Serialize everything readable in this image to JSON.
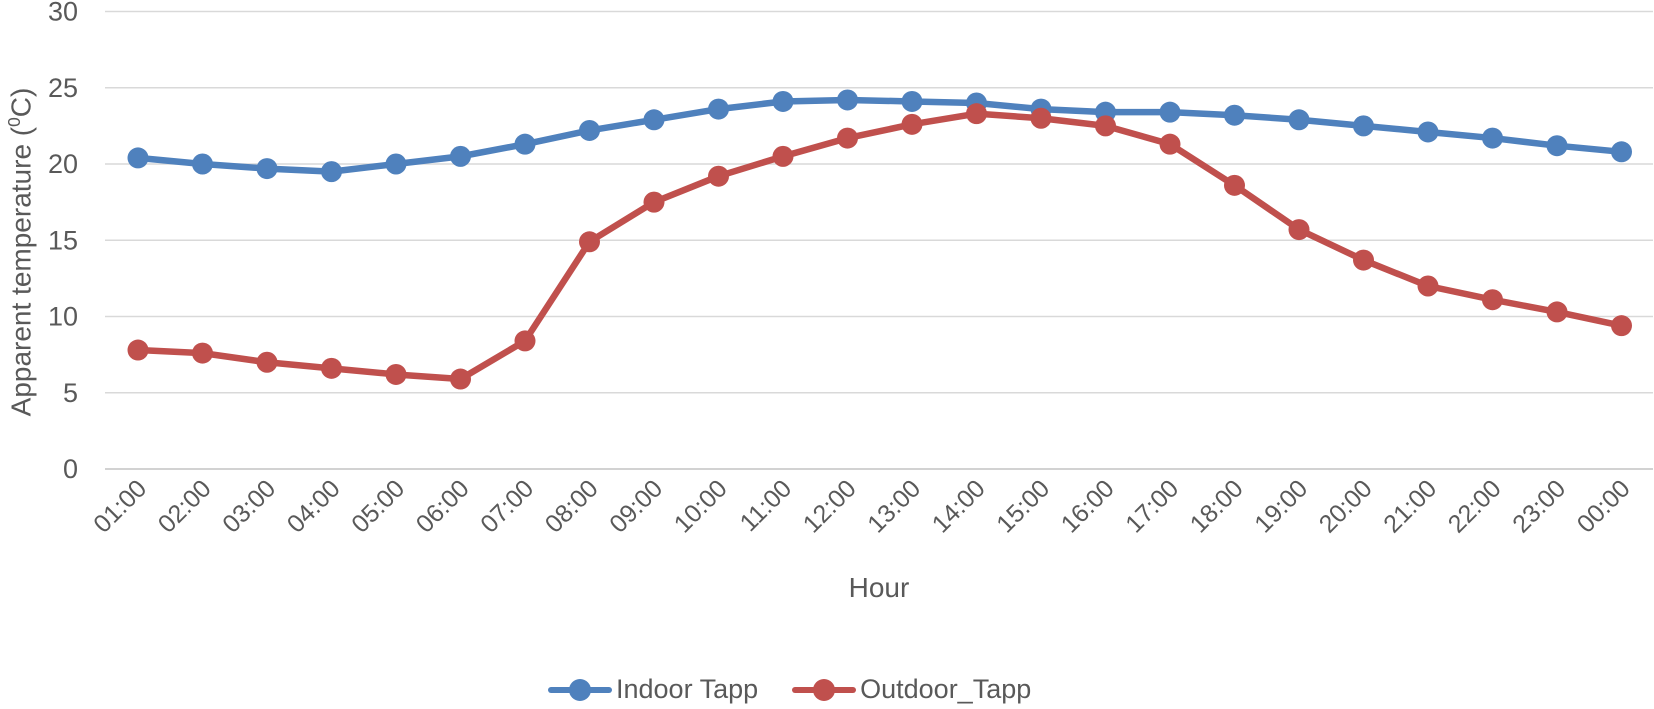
{
  "chart_data": {
    "type": "line",
    "title": "",
    "xlabel": "Hour",
    "ylabel": "Apparent temperature (⁰C)",
    "ylabel_parts": {
      "prefix": "Apparent temperature (",
      "superscript": "0",
      "suffix": "C)"
    },
    "ylim": [
      0,
      30
    ],
    "yticks": [
      0,
      5,
      10,
      15,
      20,
      25,
      30
    ],
    "grid": true,
    "legend_position": "bottom",
    "marker": "circle",
    "categories": [
      "01:00",
      "02:00",
      "03:00",
      "04:00",
      "05:00",
      "06:00",
      "07:00",
      "08:00",
      "09:00",
      "10:00",
      "11:00",
      "12:00",
      "13:00",
      "14:00",
      "15:00",
      "16:00",
      "17:00",
      "18:00",
      "19:00",
      "20:00",
      "21:00",
      "22:00",
      "23:00",
      "00:00"
    ],
    "series": [
      {
        "name": "Indoor Tapp",
        "color": "#4f81bd",
        "values": [
          20.4,
          20.0,
          19.7,
          19.5,
          20.0,
          20.5,
          21.3,
          22.2,
          22.9,
          23.6,
          24.1,
          24.2,
          24.1,
          24.0,
          23.6,
          23.4,
          23.4,
          23.2,
          22.9,
          22.5,
          22.1,
          21.7,
          21.2,
          20.8
        ]
      },
      {
        "name": "Outdoor_Tapp",
        "color": "#c0504d",
        "values": [
          7.8,
          7.6,
          7.0,
          6.6,
          6.2,
          5.9,
          8.4,
          14.9,
          17.5,
          19.2,
          20.5,
          21.7,
          22.6,
          23.3,
          23.0,
          22.5,
          21.3,
          18.6,
          15.7,
          13.7,
          12.0,
          11.1,
          10.3,
          9.4
        ]
      }
    ]
  },
  "colors": {
    "gridline": "#d9d9d9",
    "axis_line": "#c3c3c3",
    "axis_text": "#595959",
    "background": "#ffffff"
  }
}
